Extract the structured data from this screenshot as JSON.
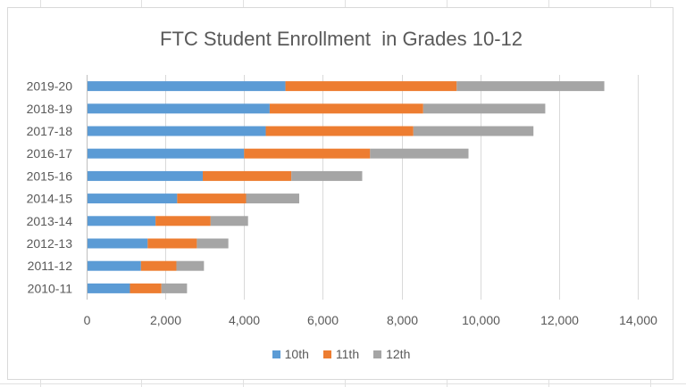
{
  "chart_data": {
    "type": "bar",
    "orientation": "horizontal",
    "stacked": true,
    "title": "FTC Student Enrollment  in Grades 10-12",
    "xlabel": "",
    "ylabel": "",
    "categories": [
      "2010-11",
      "2011-12",
      "2012-13",
      "2013-14",
      "2014-15",
      "2015-16",
      "2016-17",
      "2017-18",
      "2018-19",
      "2019-20"
    ],
    "series": [
      {
        "name": "10th",
        "color": "#5b9bd5",
        "values": [
          1100,
          1380,
          1550,
          1750,
          2300,
          2950,
          4000,
          4550,
          4650,
          5050
        ]
      },
      {
        "name": "11th",
        "color": "#ed7d31",
        "values": [
          800,
          900,
          1250,
          1400,
          1750,
          2250,
          3200,
          3750,
          3900,
          4350
        ]
      },
      {
        "name": "12th",
        "color": "#a5a5a5",
        "values": [
          650,
          700,
          800,
          950,
          1350,
          1800,
          2500,
          3050,
          3100,
          3750
        ]
      }
    ],
    "xlim": [
      0,
      14000
    ],
    "xticks": [
      "0",
      "2,000",
      "4,000",
      "6,000",
      "8,000",
      "10,000",
      "12,000",
      "14,000"
    ],
    "grid": true,
    "legend_position": "bottom"
  }
}
